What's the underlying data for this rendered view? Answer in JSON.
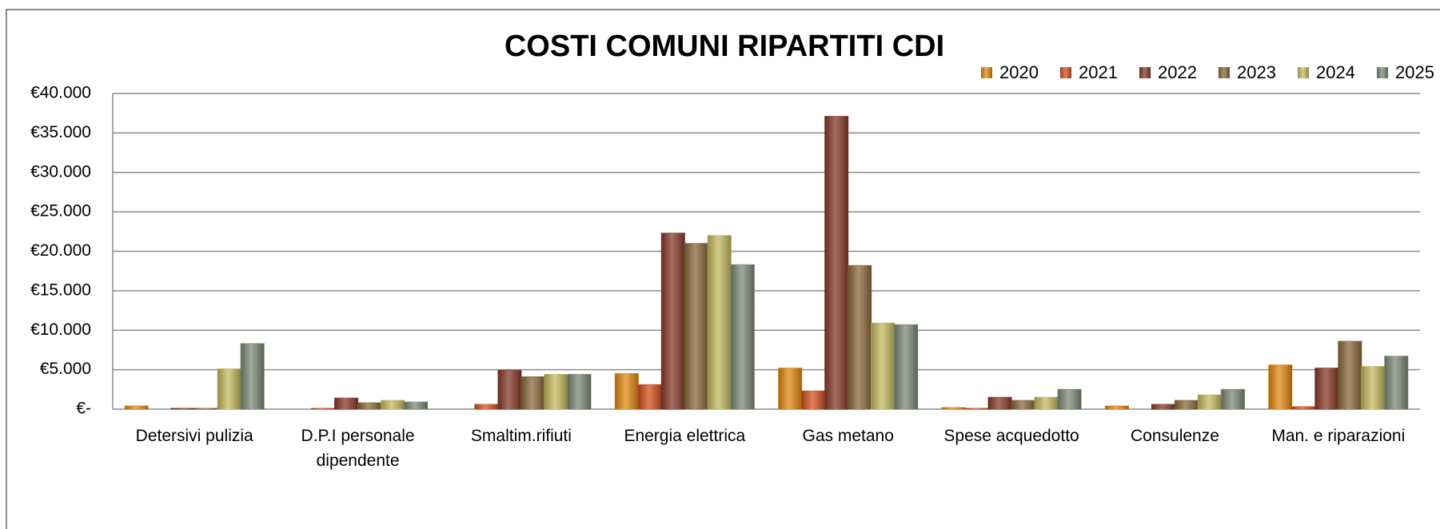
{
  "chart_data": {
    "type": "bar",
    "title": "COSTI COMUNI RIPARTITI CDI",
    "categories": [
      "Detersivi pulizia",
      "D.P.I personale dipendente",
      "Smaltim.rifiuti",
      "Energia elettrica",
      "Gas metano",
      "Spese acquedotto",
      "Consulenze",
      "Man. e riparazioni"
    ],
    "series": [
      {
        "name": "2020",
        "color": "#e38a12",
        "values": [
          400,
          0,
          0,
          4500,
          5200,
          200,
          400,
          5600
        ]
      },
      {
        "name": "2021",
        "color": "#d4521f",
        "values": [
          0,
          100,
          600,
          3100,
          2300,
          100,
          0,
          300
        ]
      },
      {
        "name": "2022",
        "color": "#8a3b2b",
        "values": [
          100,
          1400,
          4900,
          22300,
          37100,
          1500,
          600,
          5200
        ]
      },
      {
        "name": "2023",
        "color": "#8d6b3c",
        "values": [
          100,
          800,
          4100,
          21000,
          18200,
          1100,
          1100,
          8600
        ]
      },
      {
        "name": "2024",
        "color": "#c6bd62",
        "values": [
          5100,
          1100,
          4400,
          22000,
          10900,
          1500,
          1800,
          5400
        ]
      },
      {
        "name": "2025",
        "color": "#7e8c76",
        "values": [
          8300,
          900,
          4400,
          18300,
          10700,
          2500,
          2500,
          6700
        ]
      }
    ],
    "ylim": [
      0,
      40000
    ],
    "yticks": [
      {
        "value": 0,
        "label": "€-"
      },
      {
        "value": 5000,
        "label": "€5.000"
      },
      {
        "value": 10000,
        "label": "€10.000"
      },
      {
        "value": 15000,
        "label": "€15.000"
      },
      {
        "value": 20000,
        "label": "€20.000"
      },
      {
        "value": 25000,
        "label": "€25.000"
      },
      {
        "value": 30000,
        "label": "€30.000"
      },
      {
        "value": 35000,
        "label": "€35.000"
      },
      {
        "value": 40000,
        "label": "€40.000"
      }
    ],
    "grid": true,
    "legend": "top-right"
  }
}
